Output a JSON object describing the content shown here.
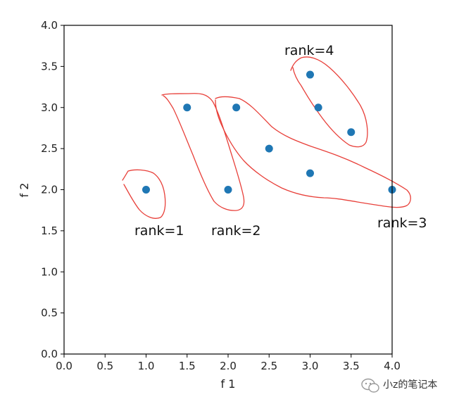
{
  "chart_data": {
    "type": "scatter",
    "xlabel": "f 1",
    "ylabel": "f 2",
    "xlim": [
      0.0,
      4.0
    ],
    "ylim": [
      0.0,
      4.0
    ],
    "x_ticks": [
      "0.0",
      "0.5",
      "1.0",
      "1.5",
      "2.0",
      "2.5",
      "3.0",
      "3.5",
      "4.0"
    ],
    "y_ticks": [
      "0.0",
      "0.5",
      "1.0",
      "1.5",
      "2.0",
      "2.5",
      "3.0",
      "3.5",
      "4.0"
    ],
    "grid": false,
    "point_color": "#1f77b4",
    "annotation_color": "#e8403a",
    "points": [
      {
        "x": 1.0,
        "y": 2.0
      },
      {
        "x": 1.5,
        "y": 3.0
      },
      {
        "x": 2.0,
        "y": 2.0
      },
      {
        "x": 2.1,
        "y": 3.0
      },
      {
        "x": 2.5,
        "y": 2.5
      },
      {
        "x": 3.0,
        "y": 2.2
      },
      {
        "x": 4.0,
        "y": 2.0
      },
      {
        "x": 3.0,
        "y": 3.4
      },
      {
        "x": 3.1,
        "y": 3.0
      },
      {
        "x": 3.5,
        "y": 2.7
      }
    ],
    "annotations": [
      {
        "text": "rank=1"
      },
      {
        "text": "rank=2"
      },
      {
        "text": "rank=3"
      },
      {
        "text": "rank=4"
      }
    ]
  },
  "watermark": {
    "text": "小z的笔记本",
    "icon": "wechat-icon"
  }
}
